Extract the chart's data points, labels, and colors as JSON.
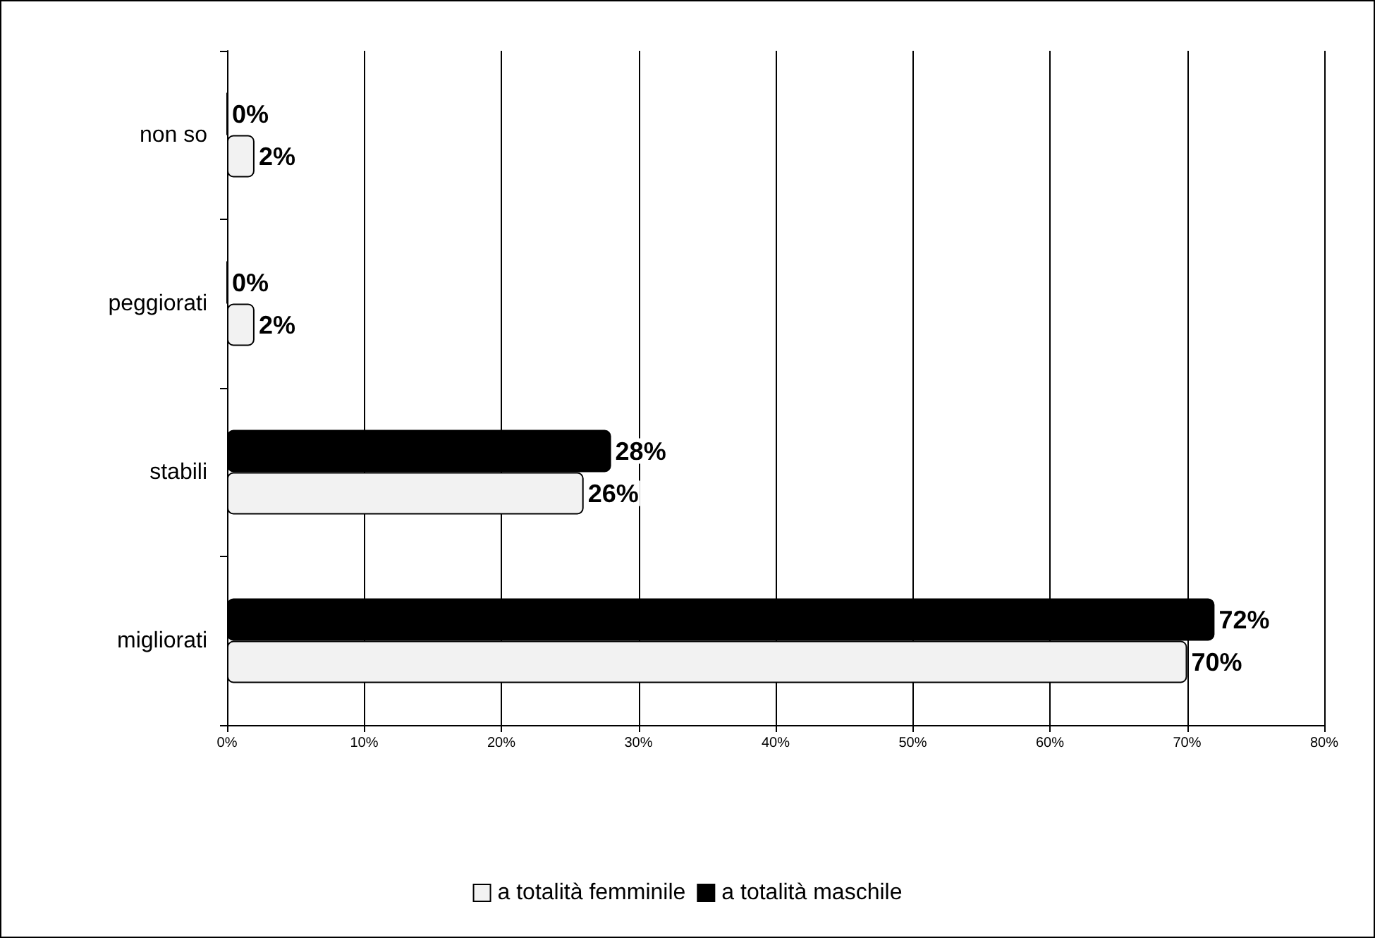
{
  "chart_data": {
    "type": "bar",
    "orientation": "horizontal",
    "categories": [
      "non so",
      "peggiorati",
      "stabili",
      "migliorati"
    ],
    "series": [
      {
        "name": "a totalità femminile",
        "color": "#f2f2f2",
        "values": [
          2,
          2,
          26,
          70
        ],
        "value_labels": [
          "2%",
          "2%",
          "26%",
          "70%"
        ]
      },
      {
        "name": "a totalità maschile",
        "color": "#000000",
        "values": [
          0,
          0,
          28,
          72
        ],
        "value_labels": [
          "0%",
          "0%",
          "28%",
          "72%"
        ]
      }
    ],
    "xlim": [
      0,
      80
    ],
    "xticks": [
      {
        "value": 0,
        "label": "0%"
      },
      {
        "value": 10,
        "label": "10%"
      },
      {
        "value": 20,
        "label": "20%"
      },
      {
        "value": 30,
        "label": "30%"
      },
      {
        "value": 40,
        "label": "40%"
      },
      {
        "value": 50,
        "label": "50%"
      },
      {
        "value": 60,
        "label": "60%"
      },
      {
        "value": 70,
        "label": "70%"
      },
      {
        "value": 80,
        "label": "80%"
      }
    ],
    "grid": "x",
    "legend": "bottom"
  }
}
